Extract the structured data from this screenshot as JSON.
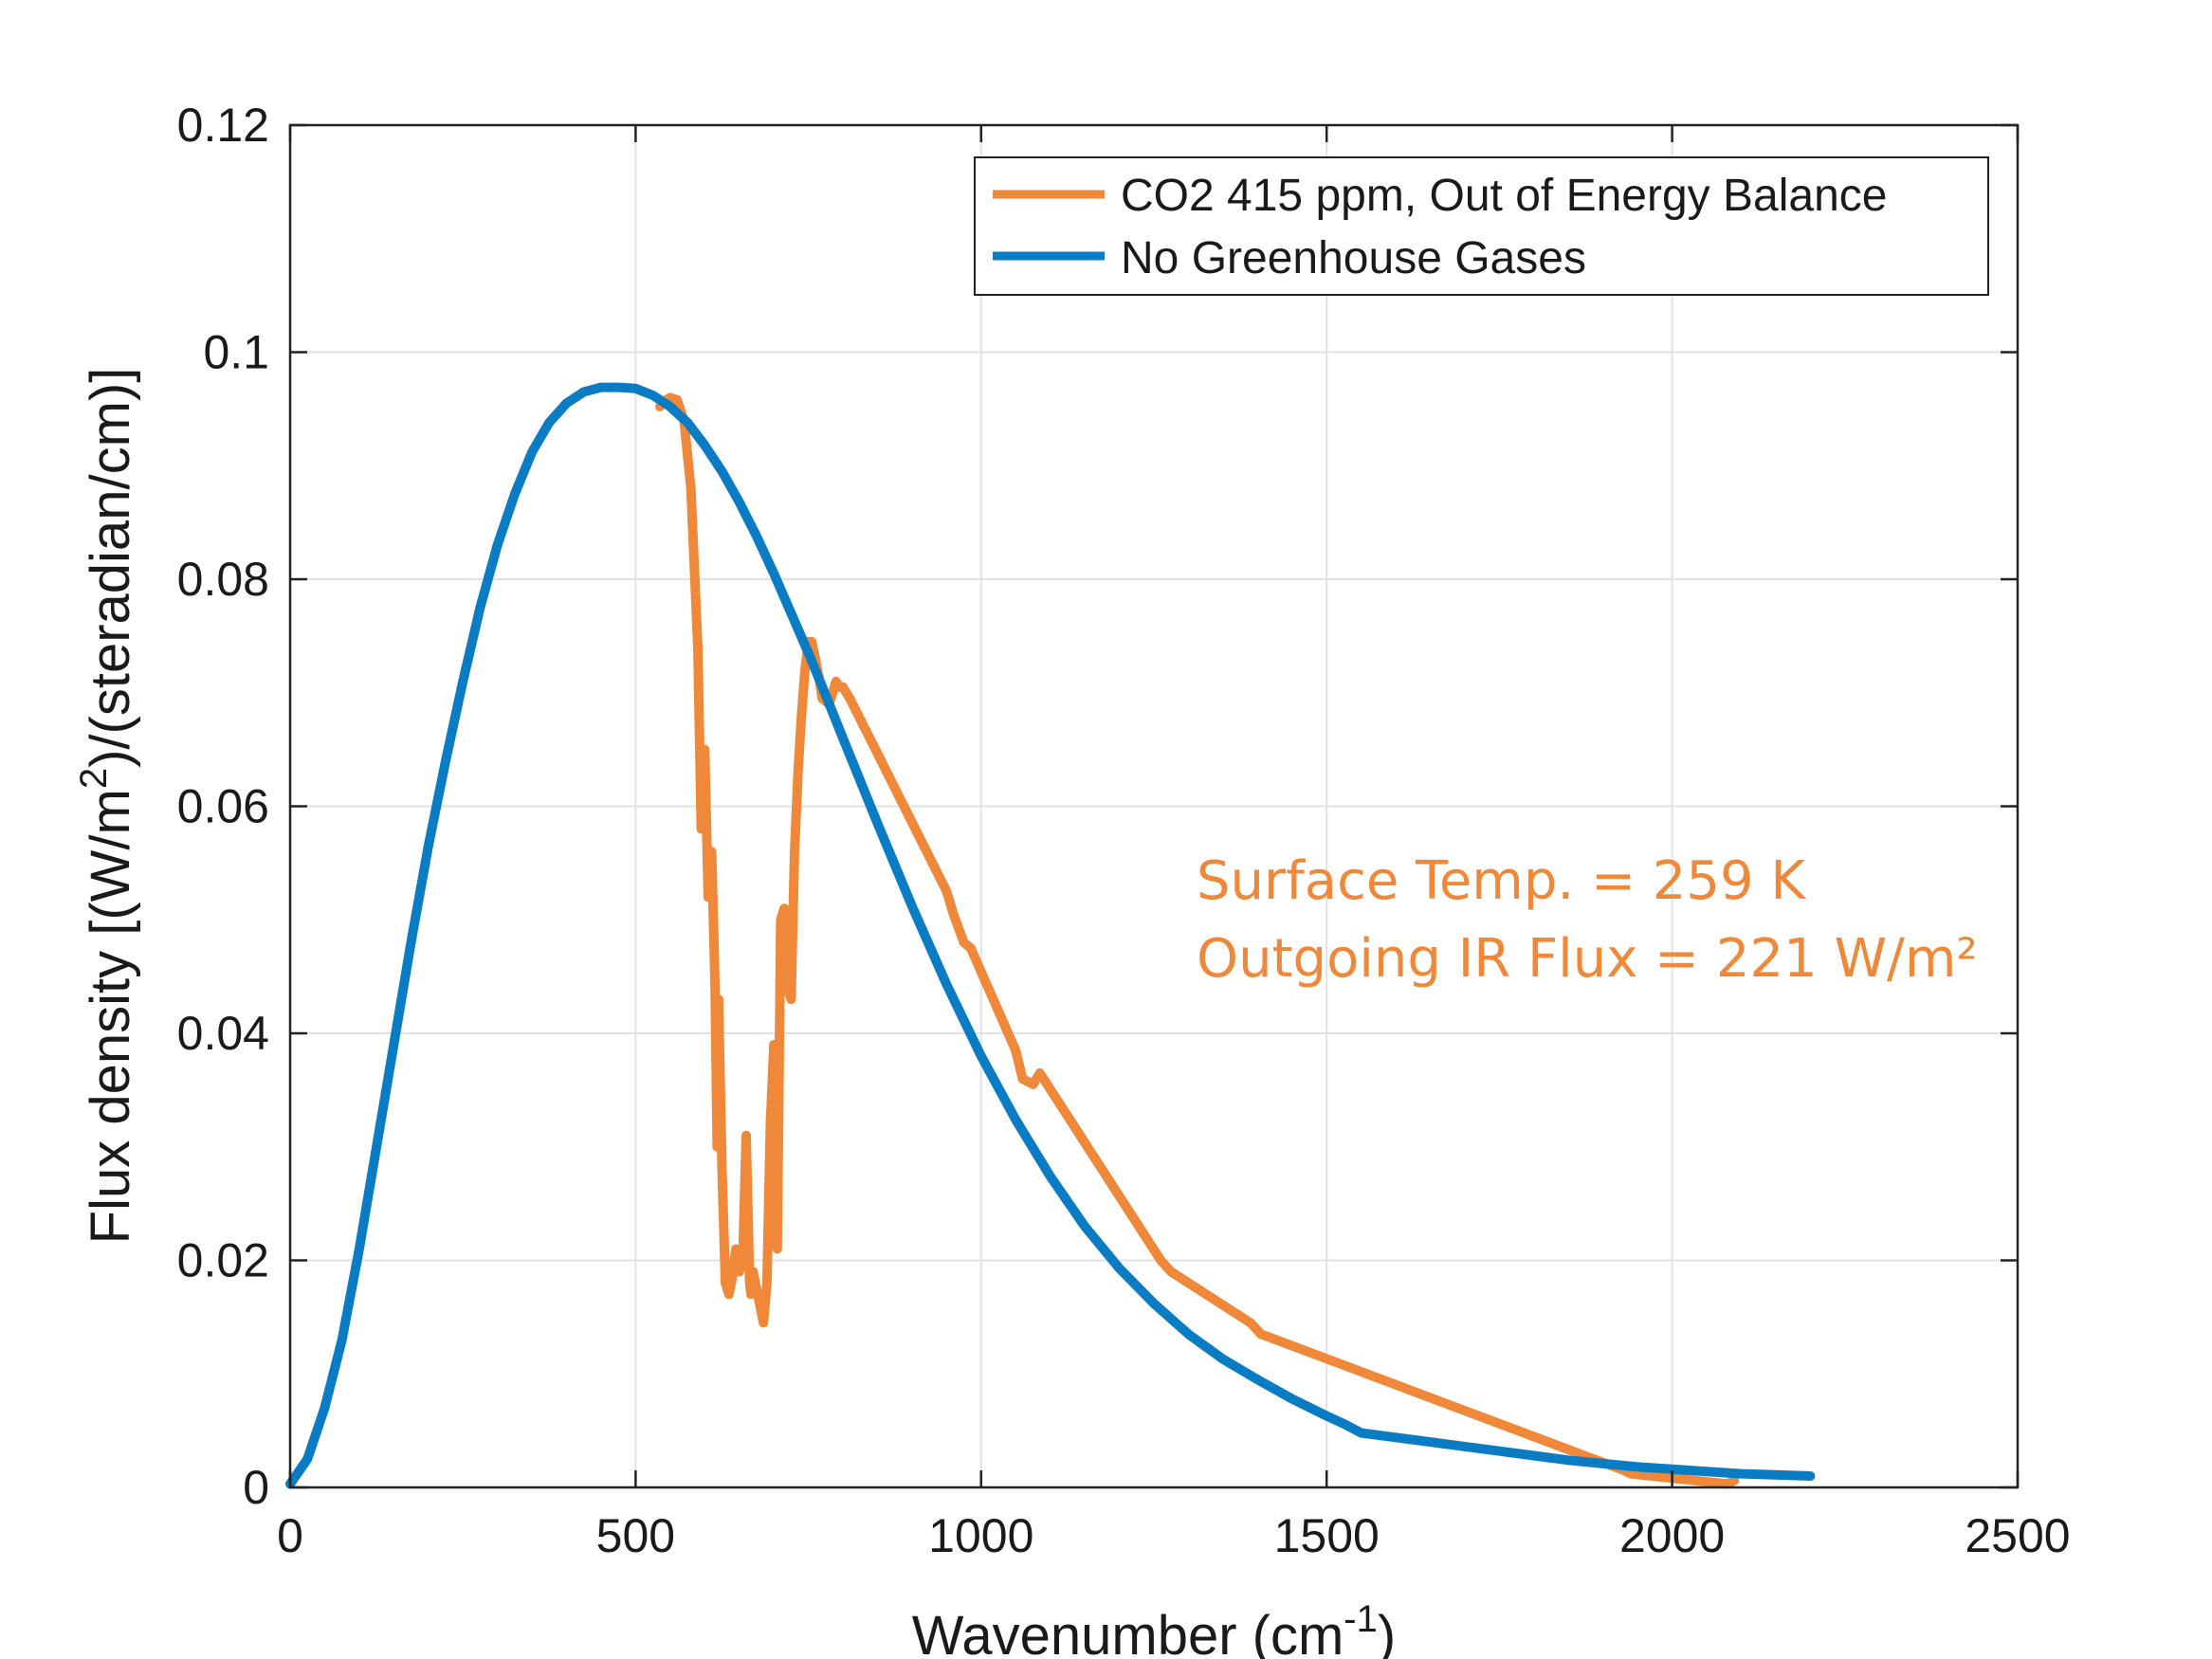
{
  "colors": {
    "co2_series": "#f0883a",
    "no_ghg_series": "#0a7cc4",
    "grid": "#e2e2e2",
    "axes": "#222222"
  },
  "chart_data": {
    "type": "line",
    "xlabel": "Wavenumber (cm",
    "xlabel_sup": "-1",
    "xlabel_end": ")",
    "ylabel_pre": "Flux density [(W/m",
    "ylabel_sup": "2",
    "ylabel_post": ")/(steradian/cm)]",
    "xlim": [
      0,
      2500
    ],
    "ylim": [
      0,
      0.12
    ],
    "xticks": [
      0,
      500,
      1000,
      1500,
      2000,
      2500
    ],
    "xtick_labels": [
      "0",
      "500",
      "1000",
      "1500",
      "2000",
      "2500"
    ],
    "yticks": [
      0,
      0.02,
      0.04,
      0.06,
      0.08,
      0.1,
      0.12
    ],
    "ytick_labels": [
      "0",
      "0.02",
      "0.04",
      "0.06",
      "0.08",
      "0.1",
      "0.12"
    ],
    "grid": true,
    "legend_position": "top-right",
    "annotations": [
      "Surface Temp. = 259 K",
      "Outgoing IR Flux = 221 W/m²"
    ],
    "series": [
      {
        "name": "CO2 415 ppm, Out of Energy Balance",
        "color": "#f0883a",
        "x": [
          535,
          545,
          550,
          560,
          570,
          580,
          590,
          595,
          600,
          605,
          610,
          615,
          618,
          620,
          625,
          630,
          635,
          640,
          645,
          650,
          655,
          660,
          665,
          667,
          670,
          675,
          680,
          685,
          690,
          695,
          700,
          705,
          710,
          715,
          720,
          725,
          728,
          730,
          735,
          740,
          745,
          750,
          755,
          760,
          765,
          770,
          780,
          790,
          795,
          800,
          810,
          950,
          960,
          975,
          985,
          1050,
          1060,
          1075,
          1085,
          1260,
          1275,
          1390,
          1405,
          1930,
          1940,
          2080,
          2090
        ],
        "y": [
          0.0952,
          0.0958,
          0.096,
          0.0958,
          0.094,
          0.088,
          0.074,
          0.058,
          0.065,
          0.052,
          0.056,
          0.044,
          0.03,
          0.043,
          0.028,
          0.018,
          0.017,
          0.0185,
          0.021,
          0.019,
          0.02,
          0.031,
          0.018,
          0.017,
          0.019,
          0.0175,
          0.016,
          0.0145,
          0.018,
          0.032,
          0.039,
          0.021,
          0.05,
          0.051,
          0.044,
          0.043,
          0.051,
          0.056,
          0.063,
          0.068,
          0.072,
          0.0745,
          0.0745,
          0.073,
          0.0715,
          0.0695,
          0.069,
          0.071,
          0.0705,
          0.0705,
          0.0695,
          0.0525,
          0.0505,
          0.048,
          0.0475,
          0.0385,
          0.036,
          0.0355,
          0.0365,
          0.02,
          0.019,
          0.0145,
          0.0135,
          0.0015,
          0.0012,
          0.0003,
          0.0006
        ]
      },
      {
        "name": "No Greenhouse Gases",
        "color": "#0a7cc4",
        "x": [
          0,
          25,
          50,
          75,
          100,
          125,
          150,
          175,
          200,
          225,
          250,
          275,
          300,
          325,
          350,
          375,
          400,
          425,
          450,
          475,
          500,
          525,
          550,
          575,
          600,
          625,
          650,
          675,
          700,
          725,
          750,
          775,
          800,
          850,
          900,
          950,
          1000,
          1050,
          1100,
          1150,
          1200,
          1250,
          1300,
          1350,
          1400,
          1450,
          1500,
          1525,
          1550,
          1575,
          1600,
          1650,
          1700,
          1750,
          1800,
          1850,
          1900,
          1950,
          2000,
          2050,
          2100,
          2150,
          2200
        ],
        "y": [
          0.0003,
          0.0025,
          0.007,
          0.013,
          0.021,
          0.03,
          0.039,
          0.048,
          0.0565,
          0.064,
          0.071,
          0.0775,
          0.083,
          0.0875,
          0.0912,
          0.0938,
          0.0955,
          0.0965,
          0.0969,
          0.0969,
          0.0968,
          0.0962,
          0.0952,
          0.0938,
          0.0918,
          0.0895,
          0.0868,
          0.0838,
          0.0805,
          0.077,
          0.0735,
          0.0698,
          0.066,
          0.0585,
          0.0512,
          0.0443,
          0.038,
          0.0324,
          0.0274,
          0.023,
          0.0193,
          0.0162,
          0.0135,
          0.0113,
          0.0095,
          0.0078,
          0.0063,
          0.0056,
          0.0048,
          0.0046,
          0.0044,
          0.004,
          0.0036,
          0.0032,
          0.0028,
          0.0024,
          0.0021,
          0.0018,
          0.0016,
          0.0014,
          0.0012,
          0.0011,
          0.001
        ]
      }
    ]
  }
}
